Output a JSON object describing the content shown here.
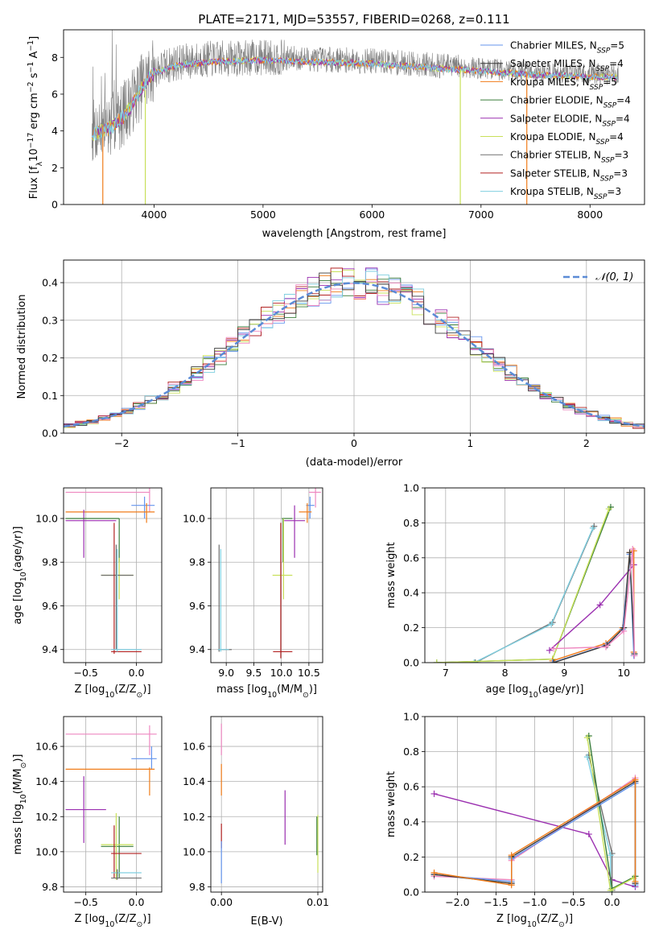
{
  "colors": {
    "Chabrier MILES": "#6495ed",
    "Salpeter MILES": "#3b3b3b",
    "Kroupa MILES": "#f07c1a",
    "Chabrier ELODIE": "#3a7d3a",
    "Salpeter ELODIE": "#9b30b0",
    "Kroupa ELODIE": "#c8e05a",
    "Chabrier STELIB": "#707070",
    "Salpeter STELIB": "#b22222",
    "Kroupa STELIB": "#7fcfe0",
    "pink": "#ee88c0",
    "gauss": "#5b8bd6"
  },
  "chart_data": [
    {
      "id": "spectrum",
      "type": "line",
      "title": "PLATE=2171, MJD=53557, FIBERID=0268, z=0.111",
      "xlabel": "wavelength [Angstrom, rest frame]",
      "ylabel": "Flux [f",
      "ylabel_parts": [
        "Flux [f",
        "λ",
        "10",
        "−17",
        " erg cm",
        "−2",
        " s",
        "−1",
        " A",
        "−1",
        "]"
      ],
      "xlim": [
        3170,
        8500
      ],
      "ylim": [
        0,
        9.5
      ],
      "xticks": [
        4000,
        5000,
        6000,
        7000,
        8000
      ],
      "yticks": [
        0,
        2,
        4,
        6,
        8
      ],
      "legend": [
        {
          "label": "Chabrier MILES, N",
          "sub": "SSP",
          "tail": "=5",
          "color_key": "Chabrier MILES"
        },
        {
          "label": "Salpeter MILES, N",
          "sub": "SSP",
          "tail": "=4",
          "color_key": "Salpeter MILES"
        },
        {
          "label": "Kroupa MILES, N",
          "sub": "SSP",
          "tail": "=5",
          "color_key": "Kroupa MILES"
        },
        {
          "label": "Chabrier ELODIE, N",
          "sub": "SSP",
          "tail": "=4",
          "color_key": "Chabrier ELODIE"
        },
        {
          "label": "Salpeter ELODIE, N",
          "sub": "SSP",
          "tail": "=4",
          "color_key": "Salpeter ELODIE"
        },
        {
          "label": "Kroupa ELODIE, N",
          "sub": "SSP",
          "tail": "=4",
          "color_key": "Kroupa ELODIE"
        },
        {
          "label": "Chabrier STELIB, N",
          "sub": "SSP",
          "tail": "=3",
          "color_key": "Chabrier STELIB"
        },
        {
          "label": "Salpeter STELIB, N",
          "sub": "SSP",
          "tail": "=3",
          "color_key": "Salpeter STELIB"
        },
        {
          "label": "Kroupa STELIB, N",
          "sub": "SSP",
          "tail": "=3",
          "color_key": "Kroupa STELIB"
        }
      ],
      "continuum": {
        "x": [
          3450,
          3600,
          3700,
          3800,
          3900,
          4000,
          4200,
          4500,
          5000,
          5500,
          6000,
          6500,
          7000,
          7500,
          8000,
          8260
        ],
        "y": [
          4.0,
          4.3,
          4.8,
          5.6,
          6.6,
          7.3,
          7.7,
          7.9,
          8.0,
          7.9,
          7.8,
          7.6,
          7.4,
          7.2,
          7.1,
          7.05
        ]
      },
      "data_range": [
        3430,
        8260
      ]
    },
    {
      "id": "residuals",
      "type": "line",
      "xlabel": "(data-model)/error",
      "ylabel": "Normed distribution",
      "xlim": [
        -2.5,
        2.5
      ],
      "ylim": [
        0,
        0.46
      ],
      "xticks": [
        -2,
        -1,
        0,
        1,
        2
      ],
      "xtick_labels": [
        "−2",
        "−1",
        "0",
        "1",
        "2"
      ],
      "yticks": [
        0.0,
        0.1,
        0.2,
        0.3,
        0.4
      ],
      "ytick_labels": [
        "0.0",
        "0.1",
        "0.2",
        "0.3",
        "0.4"
      ],
      "bin_width": 0.1,
      "legend": [
        {
          "label": "𝒩(0, 1)",
          "color_key": "gauss"
        }
      ]
    },
    {
      "id": "age-vs-Z",
      "type": "scatter",
      "xlabel": "Z [log",
      "xlabel_parts": [
        "Z [log",
        "10",
        "(Z/Z",
        "⊙",
        ")]"
      ],
      "ylabel_parts": [
        "age  [log",
        "10",
        "(age/yr)]"
      ],
      "xlim": [
        -0.72,
        0.25
      ],
      "ylim": [
        9.34,
        10.14
      ],
      "xticks": [
        -0.5,
        0.0
      ],
      "xtick_labels": [
        "−0.5",
        "0.0"
      ],
      "yticks": [
        9.4,
        9.6,
        9.8,
        10.0
      ],
      "ytick_labels": [
        "9.4",
        "9.6",
        "9.8",
        "10.0"
      ],
      "bars": [
        {
          "c": "pink",
          "x": [
            -0.7,
            0.13
          ],
          "y": 10.12,
          "vx": 0.13,
          "vy": [
            10.03,
            10.14
          ]
        },
        {
          "c": "Chabrier MILES",
          "x": [
            -0.05,
            0.18
          ],
          "y": 10.06,
          "vx": 0.08,
          "vy": [
            10.0,
            10.1
          ]
        },
        {
          "c": "Kroupa MILES",
          "x": [
            -0.7,
            0.18
          ],
          "y": 10.03,
          "vx": 0.1,
          "vy": [
            9.98,
            10.07
          ]
        },
        {
          "c": "Salpeter ELODIE",
          "x": [
            -0.7,
            -0.2
          ],
          "y": 9.99,
          "vx": -0.52,
          "vy": [
            9.82,
            10.04
          ]
        },
        {
          "c": "Chabrier ELODIE",
          "x": [
            -0.7,
            -0.17
          ],
          "y": 10.0,
          "vx": -0.17,
          "vy": [
            9.8,
            10.0
          ]
        },
        {
          "c": "Kroupa ELODIE",
          "x": [
            -0.35,
            -0.03
          ],
          "y": 9.74,
          "vx": -0.17,
          "vy": [
            9.63,
            9.82
          ]
        },
        {
          "c": "Chabrier STELIB",
          "x": [
            -0.35,
            -0.03
          ],
          "y": 9.74,
          "vx": -0.2,
          "vy": [
            9.4,
            9.88
          ]
        },
        {
          "c": "Salpeter STELIB",
          "x": [
            -0.25,
            0.05
          ],
          "y": 9.39,
          "vx": -0.22,
          "vy": [
            9.38,
            9.98
          ]
        },
        {
          "c": "Kroupa STELIB",
          "x": [
            -0.25,
            0.05
          ],
          "y": 9.4,
          "vx": -0.19,
          "vy": [
            9.39,
            9.86
          ]
        }
      ]
    },
    {
      "id": "age-vs-mass",
      "type": "scatter",
      "xlabel_parts": [
        "mass [log",
        "10",
        "(M/M",
        "⊙",
        ")]"
      ],
      "xlim": [
        8.72,
        10.75
      ],
      "ylim": [
        9.34,
        10.14
      ],
      "xticks": [
        9.0,
        9.5,
        10.0,
        10.5
      ],
      "xtick_labels": [
        "9.0",
        "9.5",
        "10.0",
        "10.5"
      ],
      "yticks": [
        9.4,
        9.6,
        9.8,
        10.0
      ],
      "ytick_labels": [
        "9.4",
        "9.6",
        "9.8",
        "10.0"
      ],
      "bars": [
        {
          "c": "pink",
          "x": [
            10.5,
            10.72
          ],
          "y": 10.12,
          "vx": 10.62,
          "vy": [
            10.05,
            10.15
          ]
        },
        {
          "c": "Chabrier MILES",
          "x": [
            10.45,
            10.6
          ],
          "y": 10.06,
          "vx": 10.52,
          "vy": [
            10.0,
            10.1
          ]
        },
        {
          "c": "Kroupa MILES",
          "x": [
            10.32,
            10.55
          ],
          "y": 10.03,
          "vx": 10.47,
          "vy": [
            9.98,
            10.07
          ]
        },
        {
          "c": "Salpeter ELODIE",
          "x": [
            10.05,
            10.43
          ],
          "y": 9.99,
          "vx": 10.24,
          "vy": [
            9.82,
            10.06
          ]
        },
        {
          "c": "Chabrier ELODIE",
          "x": [
            10.01,
            10.2
          ],
          "y": 10.0,
          "vx": 10.03,
          "vy": [
            9.8,
            10.0
          ]
        },
        {
          "c": "Kroupa ELODIE",
          "x": [
            9.84,
            10.2
          ],
          "y": 9.74,
          "vx": 10.04,
          "vy": [
            9.63,
            10.0
          ]
        },
        {
          "c": "Chabrier STELIB",
          "x": [
            8.85,
            9.1
          ],
          "y": 9.4,
          "vx": 8.87,
          "vy": [
            9.39,
            9.88
          ]
        },
        {
          "c": "Salpeter STELIB",
          "x": [
            9.85,
            10.2
          ],
          "y": 9.39,
          "vx": 9.99,
          "vy": [
            9.36,
            9.98
          ]
        },
        {
          "c": "Kroupa STELIB",
          "x": [
            8.85,
            9.05
          ],
          "y": 9.4,
          "vx": 8.9,
          "vy": [
            9.39,
            9.86
          ]
        }
      ]
    },
    {
      "id": "mass-weight-vs-age",
      "type": "line",
      "xlabel_parts": [
        "age  [log",
        "10",
        "(age/yr)]"
      ],
      "ylabel": "mass weight",
      "xlim": [
        6.65,
        10.35
      ],
      "ylim": [
        0,
        1.0
      ],
      "xticks": [
        7,
        8,
        9,
        10
      ],
      "xtick_labels": [
        "7",
        "8",
        "9",
        "10"
      ],
      "yticks": [
        0.0,
        0.2,
        0.4,
        0.6,
        0.8,
        1.0
      ],
      "ytick_labels": [
        "0.0",
        "0.2",
        "0.4",
        "0.6",
        "0.8",
        "1.0"
      ],
      "series": [
        {
          "c": "Chabrier STELIB",
          "x": [
            7.5,
            8.8,
            9.5
          ],
          "y": [
            0.0,
            0.23,
            0.78
          ]
        },
        {
          "c": "Kroupa STELIB",
          "x": [
            7.48,
            8.78,
            9.48
          ],
          "y": [
            0.0,
            0.22,
            0.77
          ]
        },
        {
          "c": "Chabrier ELODIE",
          "x": [
            6.85,
            8.8,
            9.78
          ],
          "y": [
            0.0,
            0.02,
            0.89
          ]
        },
        {
          "c": "Kroupa ELODIE",
          "x": [
            6.85,
            8.8,
            9.75
          ],
          "y": [
            0.0,
            0.02,
            0.88
          ]
        },
        {
          "c": "Salpeter ELODIE",
          "x": [
            8.75,
            9.6,
            10.17
          ],
          "y": [
            0.07,
            0.33,
            0.56
          ]
        },
        {
          "c": "Kroupa MILES",
          "x": [
            8.8,
            9.7,
            9.98,
            10.1,
            10.17,
            10.17
          ],
          "y": [
            0.01,
            0.11,
            0.2,
            0.63,
            0.64,
            0.06
          ]
        },
        {
          "c": "Chabrier MILES",
          "x": [
            8.8,
            9.7,
            9.98,
            10.1,
            10.17
          ],
          "y": [
            0.0,
            0.1,
            0.19,
            0.62,
            0.04
          ]
        },
        {
          "c": "Salpeter MILES",
          "x": [
            8.82,
            9.72,
            10.0,
            10.1,
            10.18
          ],
          "y": [
            0.0,
            0.1,
            0.2,
            0.63,
            0.05
          ]
        },
        {
          "c": "pink",
          "x": [
            8.82,
            9.7,
            10.0,
            10.15,
            10.18
          ],
          "y": [
            0.08,
            0.09,
            0.18,
            0.65,
            0.04
          ]
        }
      ]
    },
    {
      "id": "mass-vs-Z",
      "type": "scatter",
      "xlabel_parts": [
        "Z [log",
        "10",
        "(Z/Z",
        "⊙",
        ")]"
      ],
      "ylabel_parts": [
        "mass [log",
        "10",
        "(M/M",
        "⊙",
        ")]"
      ],
      "xlim": [
        -0.72,
        0.25
      ],
      "ylim": [
        9.77,
        10.77
      ],
      "xticks": [
        -0.5,
        0.0
      ],
      "xtick_labels": [
        "−0.5",
        "0.0"
      ],
      "yticks": [
        9.8,
        10.0,
        10.2,
        10.4,
        10.6
      ],
      "ytick_labels": [
        "9.8",
        "10.0",
        "10.2",
        "10.4",
        "10.6"
      ],
      "bars": [
        {
          "c": "pink",
          "x": [
            -0.7,
            0.2
          ],
          "y": 10.67,
          "vx": 0.13,
          "vy": [
            10.55,
            10.72
          ]
        },
        {
          "c": "Chabrier MILES",
          "x": [
            -0.05,
            0.2
          ],
          "y": 10.53,
          "vx": 0.15,
          "vy": [
            10.47,
            10.6
          ]
        },
        {
          "c": "Kroupa MILES",
          "x": [
            -0.7,
            0.18
          ],
          "y": 10.47,
          "vx": 0.13,
          "vy": [
            10.32,
            10.48
          ]
        },
        {
          "c": "Salpeter ELODIE",
          "x": [
            -0.7,
            -0.3
          ],
          "y": 10.24,
          "vx": -0.52,
          "vy": [
            10.05,
            10.43
          ]
        },
        {
          "c": "Chabrier ELODIE",
          "x": [
            -0.35,
            -0.03
          ],
          "y": 10.03,
          "vx": -0.17,
          "vy": [
            9.85,
            10.2
          ]
        },
        {
          "c": "Kroupa ELODIE",
          "x": [
            -0.35,
            -0.03
          ],
          "y": 10.04,
          "vx": -0.2,
          "vy": [
            9.84,
            10.22
          ]
        },
        {
          "c": "Salpeter STELIB",
          "x": [
            -0.25,
            0.05
          ],
          "y": 9.99,
          "vx": -0.22,
          "vy": [
            9.85,
            10.15
          ]
        },
        {
          "c": "Kroupa STELIB",
          "x": [
            -0.25,
            0.05
          ],
          "y": 9.88,
          "vx": -0.19,
          "vy": [
            9.85,
            9.9
          ]
        },
        {
          "c": "Chabrier STELIB",
          "x": [
            -0.25,
            0.05
          ],
          "y": 9.85,
          "vx": -0.19,
          "vy": [
            9.84,
            9.9
          ]
        }
      ]
    },
    {
      "id": "mass-vs-ebv",
      "type": "scatter",
      "xlabel": "E(B-V)",
      "xlim": [
        -0.0011,
        0.0105
      ],
      "ylim": [
        9.77,
        10.77
      ],
      "xticks": [
        0.0,
        0.01
      ],
      "xtick_labels": [
        "0.00",
        "0.01"
      ],
      "yticks": [
        9.8,
        10.0,
        10.2,
        10.4,
        10.6
      ],
      "ytick_labels": [
        "9.8",
        "10.0",
        "10.2",
        "10.4",
        "10.6"
      ],
      "bars": [
        {
          "c": "pink",
          "vx": 0.0,
          "vy": [
            10.55,
            10.73
          ]
        },
        {
          "c": "Kroupa MILES",
          "vx": 0.0,
          "vy": [
            10.32,
            10.5
          ]
        },
        {
          "c": "Salpeter STELIB",
          "vx": 0.0,
          "vy": [
            10.02,
            10.16
          ]
        },
        {
          "c": "Chabrier MILES",
          "vx": 0.0,
          "vy": [
            9.82,
            10.06
          ]
        },
        {
          "c": "Salpeter ELODIE",
          "vx": 0.0066,
          "vy": [
            10.04,
            10.35
          ]
        },
        {
          "c": "Kroupa ELODIE",
          "vx": 0.01,
          "vy": [
            9.88,
            10.21
          ]
        },
        {
          "c": "Chabrier ELODIE",
          "vx": 0.0099,
          "vy": [
            9.98,
            10.2
          ]
        }
      ]
    },
    {
      "id": "mass-weight-vs-Z",
      "type": "line",
      "xlabel_parts": [
        "Z [log",
        "10",
        "(Z/Z",
        "⊙",
        ")]"
      ],
      "ylabel": "mass weight",
      "xlim": [
        -2.42,
        0.42
      ],
      "ylim": [
        0,
        1.0
      ],
      "xticks": [
        -2.0,
        -1.5,
        -1.0,
        -0.5,
        0.0
      ],
      "xtick_labels": [
        "−2.0",
        "−1.5",
        "−1.0",
        "−0.5",
        "0.0"
      ],
      "yticks": [
        0.0,
        0.2,
        0.4,
        0.6,
        0.8,
        1.0
      ],
      "ytick_labels": [
        "0.0",
        "0.2",
        "0.4",
        "0.6",
        "0.8",
        "1.0"
      ],
      "series": [
        {
          "c": "Salpeter ELODIE",
          "x": [
            -2.3,
            -0.3,
            0.0,
            0.3
          ],
          "y": [
            0.56,
            0.33,
            0.07,
            0.03
          ]
        },
        {
          "c": "Chabrier STELIB",
          "x": [
            -0.3,
            0.0,
            0.0
          ],
          "y": [
            0.78,
            0.22,
            0.01
          ]
        },
        {
          "c": "Kroupa STELIB",
          "x": [
            -0.32,
            -0.02,
            -0.02
          ],
          "y": [
            0.77,
            0.21,
            0.0
          ]
        },
        {
          "c": "Chabrier ELODIE",
          "x": [
            -0.3,
            0.0,
            0.3
          ],
          "y": [
            0.89,
            0.02,
            0.09
          ]
        },
        {
          "c": "Kroupa ELODIE",
          "x": [
            -0.32,
            -0.02,
            0.28
          ],
          "y": [
            0.88,
            0.01,
            0.08
          ]
        },
        {
          "c": "pink",
          "x": [
            -2.3,
            -1.3,
            -1.3,
            0.3
          ],
          "y": [
            0.09,
            0.07,
            0.18,
            0.65
          ]
        },
        {
          "c": "Chabrier MILES",
          "x": [
            -2.3,
            -1.3,
            -1.3,
            0.3,
            0.3
          ],
          "y": [
            0.1,
            0.06,
            0.19,
            0.62,
            0.04
          ]
        },
        {
          "c": "Salpeter MILES",
          "x": [
            -2.3,
            -1.3,
            -1.3,
            0.3,
            0.3
          ],
          "y": [
            0.1,
            0.05,
            0.2,
            0.63,
            0.05
          ]
        },
        {
          "c": "Kroupa MILES",
          "x": [
            -2.3,
            -1.3,
            -1.3,
            0.3,
            0.3
          ],
          "y": [
            0.11,
            0.04,
            0.21,
            0.64,
            0.06
          ]
        }
      ]
    }
  ]
}
